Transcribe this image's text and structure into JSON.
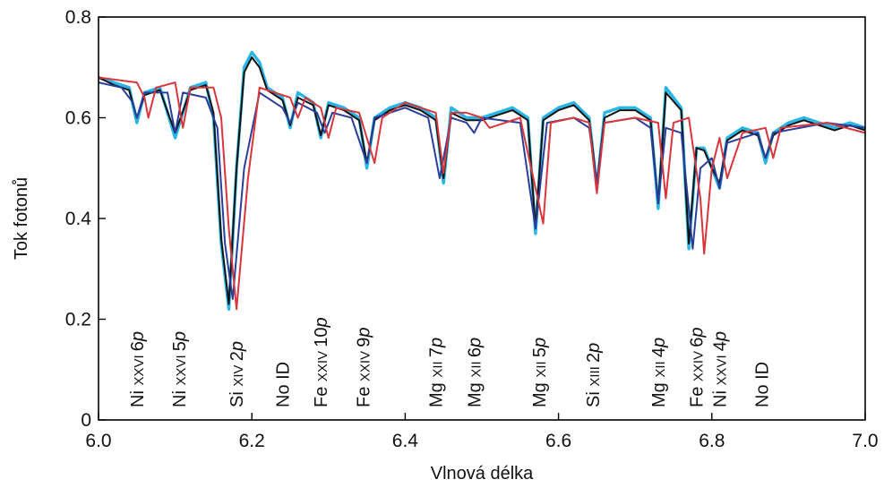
{
  "chart_data": {
    "type": "line",
    "xlabel": "Vlnová délka",
    "ylabel": "Tok fotonů",
    "xlim": [
      6.0,
      7.0
    ],
    "ylim": [
      0,
      0.8
    ],
    "xticks": [
      "6.0",
      "6.2",
      "6.4",
      "6.6",
      "6.8",
      "7.0"
    ],
    "yticks": [
      "0",
      "0.2",
      "0.4",
      "0.6",
      "0.8"
    ],
    "grid": false,
    "legend": "none",
    "series": [
      {
        "color": "#29b6e6",
        "x": [
          6.0,
          6.02,
          6.04,
          6.05,
          6.06,
          6.08,
          6.1,
          6.12,
          6.14,
          6.15,
          6.16,
          6.17,
          6.18,
          6.19,
          6.2,
          6.21,
          6.22,
          6.24,
          6.25,
          6.26,
          6.28,
          6.29,
          6.3,
          6.32,
          6.34,
          6.35,
          6.36,
          6.38,
          6.4,
          6.42,
          6.44,
          6.45,
          6.46,
          6.48,
          6.5,
          6.52,
          6.54,
          6.56,
          6.57,
          6.58,
          6.6,
          6.62,
          6.64,
          6.65,
          6.66,
          6.68,
          6.7,
          6.72,
          6.73,
          6.74,
          6.76,
          6.77,
          6.78,
          6.79,
          6.8,
          6.81,
          6.82,
          6.84,
          6.86,
          6.87,
          6.88,
          6.9,
          6.92,
          6.94,
          6.96,
          6.98,
          7.0
        ],
        "y": [
          0.68,
          0.67,
          0.66,
          0.59,
          0.65,
          0.66,
          0.56,
          0.66,
          0.67,
          0.6,
          0.35,
          0.22,
          0.5,
          0.7,
          0.73,
          0.71,
          0.66,
          0.64,
          0.58,
          0.65,
          0.63,
          0.56,
          0.63,
          0.62,
          0.6,
          0.5,
          0.6,
          0.62,
          0.63,
          0.62,
          0.6,
          0.47,
          0.62,
          0.6,
          0.6,
          0.61,
          0.62,
          0.6,
          0.37,
          0.6,
          0.62,
          0.63,
          0.6,
          0.46,
          0.61,
          0.62,
          0.62,
          0.6,
          0.42,
          0.66,
          0.62,
          0.34,
          0.54,
          0.54,
          0.5,
          0.46,
          0.56,
          0.58,
          0.57,
          0.51,
          0.57,
          0.59,
          0.6,
          0.59,
          0.58,
          0.59,
          0.58
        ]
      },
      {
        "color": "#111111",
        "x": [
          6.0,
          6.02,
          6.04,
          6.05,
          6.06,
          6.08,
          6.1,
          6.12,
          6.14,
          6.15,
          6.16,
          6.17,
          6.18,
          6.19,
          6.2,
          6.21,
          6.22,
          6.24,
          6.25,
          6.26,
          6.28,
          6.29,
          6.3,
          6.32,
          6.34,
          6.35,
          6.36,
          6.38,
          6.4,
          6.42,
          6.44,
          6.45,
          6.46,
          6.48,
          6.5,
          6.52,
          6.54,
          6.56,
          6.57,
          6.58,
          6.6,
          6.62,
          6.64,
          6.65,
          6.66,
          6.68,
          6.7,
          6.72,
          6.73,
          6.74,
          6.76,
          6.77,
          6.78,
          6.79,
          6.8,
          6.81,
          6.82,
          6.84,
          6.86,
          6.87,
          6.88,
          6.9,
          6.92,
          6.94,
          6.96,
          6.98,
          7.0
        ],
        "y": [
          0.68,
          0.665,
          0.655,
          0.6,
          0.645,
          0.655,
          0.57,
          0.655,
          0.665,
          0.61,
          0.36,
          0.23,
          0.5,
          0.69,
          0.72,
          0.7,
          0.655,
          0.635,
          0.585,
          0.64,
          0.625,
          0.565,
          0.625,
          0.615,
          0.595,
          0.51,
          0.595,
          0.615,
          0.625,
          0.615,
          0.595,
          0.48,
          0.61,
          0.595,
          0.595,
          0.605,
          0.615,
          0.595,
          0.38,
          0.595,
          0.615,
          0.625,
          0.595,
          0.47,
          0.6,
          0.615,
          0.615,
          0.595,
          0.43,
          0.65,
          0.615,
          0.35,
          0.54,
          0.535,
          0.5,
          0.47,
          0.555,
          0.575,
          0.565,
          0.52,
          0.565,
          0.585,
          0.595,
          0.585,
          0.575,
          0.585,
          0.575
        ]
      },
      {
        "color": "#2b3d9c",
        "x": [
          6.0,
          6.03,
          6.045,
          6.05,
          6.06,
          6.09,
          6.1,
          6.11,
          6.14,
          6.155,
          6.165,
          6.175,
          6.19,
          6.21,
          6.24,
          6.25,
          6.26,
          6.285,
          6.295,
          6.305,
          6.33,
          6.35,
          6.36,
          6.4,
          6.43,
          6.445,
          6.46,
          6.48,
          6.49,
          6.5,
          6.55,
          6.57,
          6.585,
          6.62,
          6.64,
          6.65,
          6.66,
          6.7,
          6.72,
          6.73,
          6.74,
          6.76,
          6.77,
          6.775,
          6.785,
          6.8,
          6.81,
          6.82,
          6.86,
          6.87,
          6.88,
          6.95,
          7.0
        ],
        "y": [
          0.67,
          0.66,
          0.63,
          0.6,
          0.65,
          0.65,
          0.57,
          0.65,
          0.64,
          0.58,
          0.35,
          0.24,
          0.5,
          0.65,
          0.62,
          0.59,
          0.63,
          0.61,
          0.57,
          0.61,
          0.6,
          0.51,
          0.6,
          0.62,
          0.6,
          0.48,
          0.6,
          0.59,
          0.57,
          0.6,
          0.59,
          0.38,
          0.59,
          0.6,
          0.58,
          0.47,
          0.59,
          0.6,
          0.58,
          0.43,
          0.58,
          0.57,
          0.42,
          0.34,
          0.5,
          0.52,
          0.46,
          0.55,
          0.57,
          0.52,
          0.57,
          0.59,
          0.58
        ]
      },
      {
        "color": "#d9363b",
        "x": [
          6.0,
          6.05,
          6.06,
          6.065,
          6.075,
          6.1,
          6.11,
          6.12,
          6.15,
          6.16,
          6.17,
          6.18,
          6.195,
          6.21,
          6.25,
          6.26,
          6.27,
          6.29,
          6.3,
          6.31,
          6.34,
          6.36,
          6.37,
          6.4,
          6.44,
          6.45,
          6.46,
          6.48,
          6.5,
          6.51,
          6.55,
          6.58,
          6.59,
          6.62,
          6.64,
          6.65,
          6.66,
          6.7,
          6.73,
          6.74,
          6.75,
          6.77,
          6.785,
          6.79,
          6.8,
          6.81,
          6.82,
          6.84,
          6.87,
          6.88,
          6.89,
          6.95,
          7.0
        ],
        "y": [
          0.68,
          0.67,
          0.64,
          0.6,
          0.66,
          0.67,
          0.58,
          0.66,
          0.66,
          0.6,
          0.38,
          0.22,
          0.48,
          0.66,
          0.64,
          0.6,
          0.64,
          0.62,
          0.56,
          0.62,
          0.61,
          0.51,
          0.6,
          0.63,
          0.61,
          0.49,
          0.61,
          0.61,
          0.6,
          0.58,
          0.6,
          0.39,
          0.59,
          0.6,
          0.59,
          0.45,
          0.59,
          0.6,
          0.59,
          0.44,
          0.59,
          0.6,
          0.44,
          0.33,
          0.5,
          0.56,
          0.48,
          0.57,
          0.58,
          0.52,
          0.58,
          0.59,
          0.57
        ]
      }
    ],
    "annotations": [
      {
        "x": 6.05,
        "text": "Ni XXVI 6",
        "sub": "p"
      },
      {
        "x": 6.105,
        "text": "Ni XXVI 5",
        "sub": "p"
      },
      {
        "x": 6.18,
        "text": "Si XIV 2",
        "sub": "p"
      },
      {
        "x": 6.24,
        "text": "No ID",
        "sub": ""
      },
      {
        "x": 6.29,
        "text": "Fe XXIV 10",
        "sub": "p"
      },
      {
        "x": 6.345,
        "text": "Fe XXIV 9",
        "sub": "p"
      },
      {
        "x": 6.44,
        "text": "Mg XII 7",
        "sub": "p"
      },
      {
        "x": 6.49,
        "text": "Mg XII 6",
        "sub": "p"
      },
      {
        "x": 6.575,
        "text": "Mg XII 5",
        "sub": "p"
      },
      {
        "x": 6.645,
        "text": "Si XIII 2",
        "sub": "p"
      },
      {
        "x": 6.73,
        "text": "Mg XII 4",
        "sub": "p"
      },
      {
        "x": 6.78,
        "text": "Fe XXIV 6",
        "sub": "p"
      },
      {
        "x": 6.81,
        "text": "Ni XXVI 4",
        "sub": "p"
      },
      {
        "x": 6.865,
        "text": "No ID",
        "sub": ""
      }
    ]
  }
}
